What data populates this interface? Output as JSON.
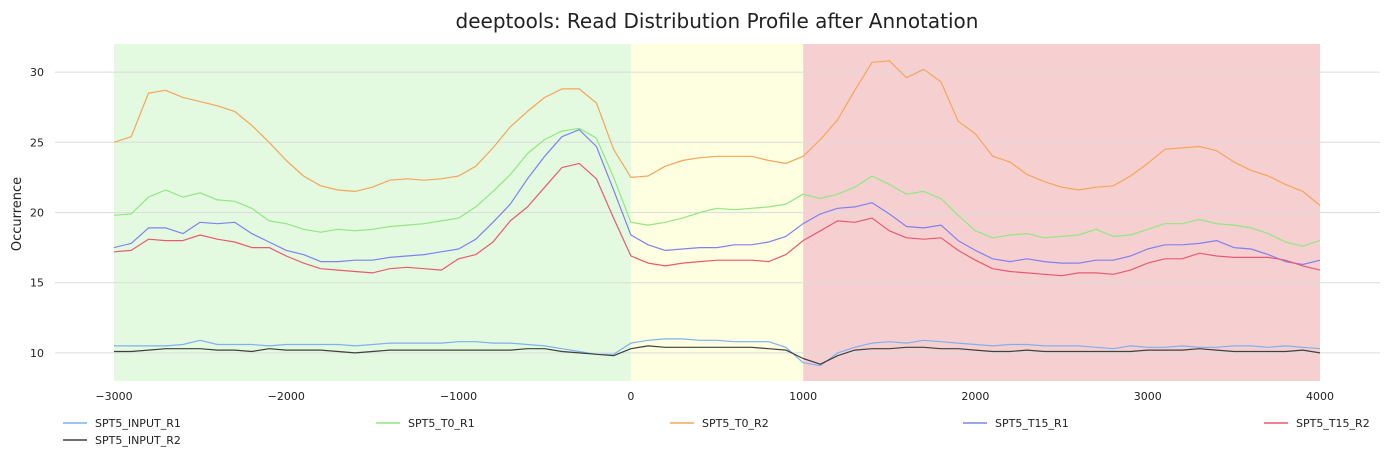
{
  "chart_data": {
    "type": "line",
    "title": "deeptools: Read Distribution Profile after Annotation",
    "xlabel": "",
    "ylabel": "Occurrence",
    "xlim": [
      -3000,
      4000
    ],
    "ylim": [
      8,
      32
    ],
    "xticks": [
      -3000,
      -2000,
      -1000,
      0,
      1000,
      2000,
      3000,
      4000
    ],
    "xtick_labels": [
      "−3000",
      "−2000",
      "−1000",
      "0",
      "1000",
      "2000",
      "3000",
      "4000"
    ],
    "yticks": [
      10,
      15,
      20,
      25,
      30
    ],
    "grid": "horizontal",
    "legend_position": "bottom",
    "regions": [
      {
        "from": -3000,
        "to": 0,
        "color": "#e3fae0"
      },
      {
        "from": 0,
        "to": 1000,
        "color": "#fefee0"
      },
      {
        "from": 1000,
        "to": 4000,
        "color": "#f6d0d0"
      }
    ],
    "x": [
      -3000,
      -2900,
      -2800,
      -2700,
      -2600,
      -2500,
      -2400,
      -2300,
      -2200,
      -2100,
      -2000,
      -1900,
      -1800,
      -1700,
      -1600,
      -1500,
      -1400,
      -1300,
      -1200,
      -1100,
      -1000,
      -900,
      -800,
      -700,
      -600,
      -500,
      -400,
      -300,
      -200,
      -100,
      0,
      100,
      200,
      300,
      400,
      500,
      600,
      700,
      800,
      900,
      1000,
      1100,
      1200,
      1300,
      1400,
      1500,
      1600,
      1700,
      1800,
      1900,
      2000,
      2100,
      2200,
      2300,
      2400,
      2500,
      2600,
      2700,
      2800,
      2900,
      3000,
      3100,
      3200,
      3300,
      3400,
      3500,
      3600,
      3700,
      3800,
      3900,
      4000
    ],
    "series": [
      {
        "name": "SPT5_INPUT_R1",
        "color": "#7fb0f0",
        "values": [
          10.5,
          10.5,
          10.5,
          10.5,
          10.6,
          10.9,
          10.6,
          10.6,
          10.6,
          10.5,
          10.6,
          10.6,
          10.6,
          10.6,
          10.5,
          10.6,
          10.7,
          10.7,
          10.7,
          10.7,
          10.8,
          10.8,
          10.7,
          10.7,
          10.6,
          10.5,
          10.3,
          10.1,
          9.9,
          9.9,
          10.7,
          10.9,
          11.0,
          11.0,
          10.9,
          10.9,
          10.8,
          10.8,
          10.8,
          10.4,
          9.3,
          9.1,
          10.0,
          10.4,
          10.7,
          10.8,
          10.7,
          10.9,
          10.8,
          10.7,
          10.6,
          10.5,
          10.6,
          10.6,
          10.5,
          10.5,
          10.5,
          10.4,
          10.3,
          10.5,
          10.4,
          10.4,
          10.5,
          10.4,
          10.4,
          10.5,
          10.5,
          10.4,
          10.5,
          10.4,
          10.3
        ]
      },
      {
        "name": "SPT5_INPUT_R2",
        "color": "#404040",
        "values": [
          10.1,
          10.1,
          10.2,
          10.3,
          10.3,
          10.3,
          10.2,
          10.2,
          10.1,
          10.3,
          10.2,
          10.2,
          10.2,
          10.1,
          10.0,
          10.1,
          10.2,
          10.2,
          10.2,
          10.2,
          10.2,
          10.2,
          10.2,
          10.2,
          10.3,
          10.3,
          10.1,
          10.0,
          9.9,
          9.8,
          10.3,
          10.5,
          10.4,
          10.4,
          10.4,
          10.4,
          10.4,
          10.4,
          10.3,
          10.2,
          9.6,
          9.2,
          9.8,
          10.2,
          10.3,
          10.3,
          10.4,
          10.4,
          10.3,
          10.3,
          10.2,
          10.1,
          10.1,
          10.2,
          10.1,
          10.1,
          10.1,
          10.1,
          10.1,
          10.1,
          10.2,
          10.2,
          10.2,
          10.3,
          10.2,
          10.1,
          10.1,
          10.1,
          10.1,
          10.2,
          10.0
        ]
      },
      {
        "name": "SPT5_T0_R1",
        "color": "#90e880",
        "values": [
          19.8,
          19.9,
          21.1,
          21.6,
          21.1,
          21.4,
          20.9,
          20.8,
          20.3,
          19.4,
          19.2,
          18.8,
          18.6,
          18.8,
          18.7,
          18.8,
          19.0,
          19.1,
          19.2,
          19.4,
          19.6,
          20.4,
          21.5,
          22.7,
          24.2,
          25.2,
          25.8,
          26.0,
          25.3,
          22.5,
          19.3,
          19.1,
          19.3,
          19.6,
          20.0,
          20.3,
          20.2,
          20.3,
          20.4,
          20.6,
          21.3,
          21.0,
          21.3,
          21.8,
          22.6,
          22.0,
          21.3,
          21.5,
          21.0,
          19.8,
          18.7,
          18.2,
          18.4,
          18.5,
          18.2,
          18.3,
          18.4,
          18.8,
          18.3,
          18.4,
          18.8,
          19.2,
          19.2,
          19.5,
          19.2,
          19.1,
          18.9,
          18.5,
          17.9,
          17.6,
          18.0
        ]
      },
      {
        "name": "SPT5_T0_R2",
        "color": "#f5a55a",
        "values": [
          25.0,
          25.4,
          28.5,
          28.7,
          28.2,
          27.9,
          27.6,
          27.2,
          26.2,
          25.0,
          23.7,
          22.6,
          21.9,
          21.6,
          21.5,
          21.8,
          22.3,
          22.4,
          22.3,
          22.4,
          22.6,
          23.3,
          24.6,
          26.1,
          27.2,
          28.2,
          28.8,
          28.8,
          27.8,
          24.5,
          22.5,
          22.6,
          23.3,
          23.7,
          23.9,
          24.0,
          24.0,
          24.0,
          23.7,
          23.5,
          24.0,
          25.2,
          26.6,
          28.7,
          30.7,
          30.8,
          29.6,
          30.2,
          29.3,
          26.5,
          25.6,
          24.0,
          23.6,
          22.7,
          22.2,
          21.8,
          21.6,
          21.8,
          21.9,
          22.6,
          23.5,
          24.5,
          24.6,
          24.7,
          24.4,
          23.6,
          23.0,
          22.6,
          22.0,
          21.5,
          20.5
        ]
      },
      {
        "name": "SPT5_T15_R1",
        "color": "#8080f0",
        "values": [
          17.5,
          17.8,
          18.9,
          18.9,
          18.5,
          19.3,
          19.2,
          19.3,
          18.5,
          17.9,
          17.3,
          17.0,
          16.5,
          16.5,
          16.6,
          16.6,
          16.8,
          16.9,
          17.0,
          17.2,
          17.4,
          18.1,
          19.3,
          20.6,
          22.4,
          24.0,
          25.4,
          25.9,
          24.7,
          21.6,
          18.4,
          17.7,
          17.3,
          17.4,
          17.5,
          17.5,
          17.7,
          17.7,
          17.9,
          18.3,
          19.2,
          19.9,
          20.3,
          20.4,
          20.7,
          19.9,
          19.0,
          18.9,
          19.1,
          18.0,
          17.3,
          16.7,
          16.5,
          16.7,
          16.5,
          16.4,
          16.4,
          16.6,
          16.6,
          16.9,
          17.4,
          17.7,
          17.7,
          17.8,
          18.0,
          17.5,
          17.4,
          17.0,
          16.5,
          16.3,
          16.6
        ]
      },
      {
        "name": "SPT5_T15_R2",
        "color": "#e85a70",
        "values": [
          17.2,
          17.3,
          18.1,
          18.0,
          18.0,
          18.4,
          18.1,
          17.9,
          17.5,
          17.5,
          16.9,
          16.4,
          16.0,
          15.9,
          15.8,
          15.7,
          16.0,
          16.1,
          16.0,
          15.9,
          16.7,
          17.0,
          17.9,
          19.4,
          20.4,
          21.8,
          23.2,
          23.5,
          22.4,
          19.6,
          16.9,
          16.4,
          16.2,
          16.4,
          16.5,
          16.6,
          16.6,
          16.6,
          16.5,
          17.0,
          18.0,
          18.7,
          19.4,
          19.3,
          19.6,
          18.7,
          18.2,
          18.1,
          18.2,
          17.3,
          16.6,
          16.0,
          15.8,
          15.7,
          15.6,
          15.5,
          15.7,
          15.7,
          15.6,
          15.9,
          16.4,
          16.7,
          16.7,
          17.1,
          16.9,
          16.8,
          16.8,
          16.8,
          16.6,
          16.2,
          15.9
        ]
      }
    ]
  }
}
